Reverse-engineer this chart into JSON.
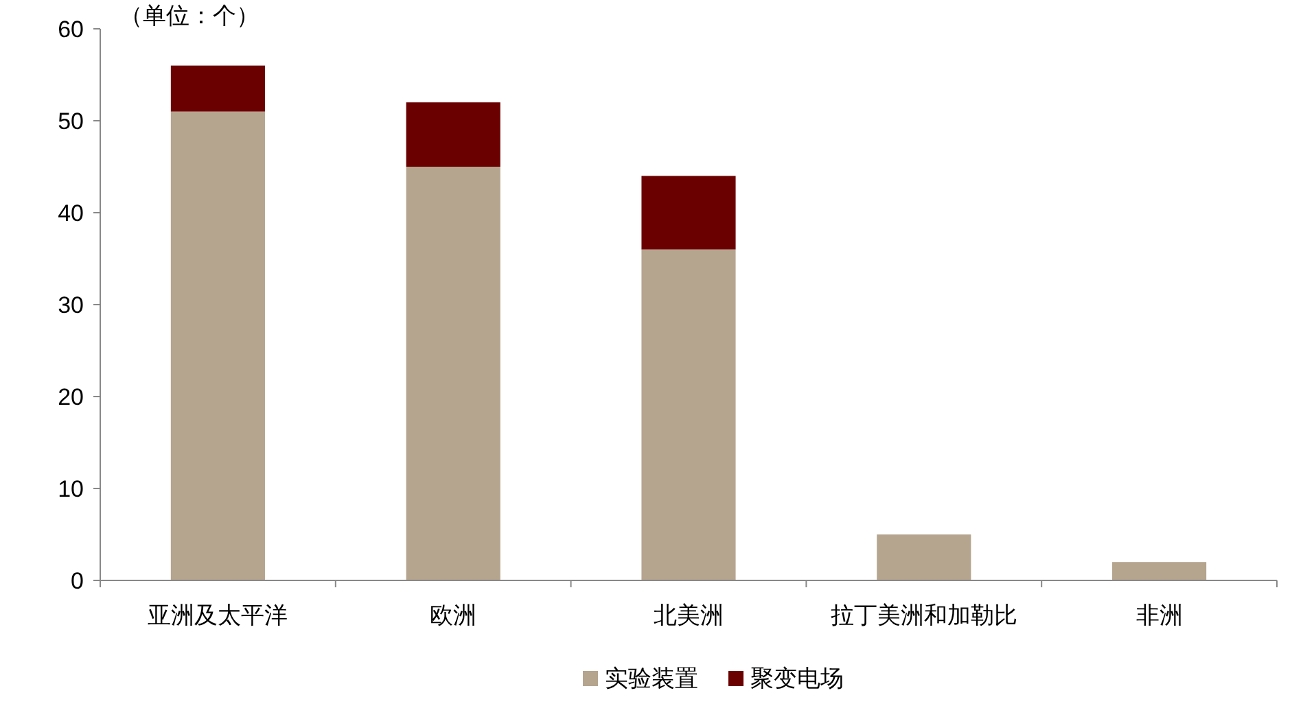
{
  "chart_data": {
    "type": "bar",
    "stacked": true,
    "annotations": [
      "（单位：个）"
    ],
    "categories": [
      "亚洲及太平洋",
      "欧洲",
      "北美洲",
      "拉丁美洲和加勒比",
      "非洲"
    ],
    "series": [
      {
        "name": "实验装置",
        "color": "#b5a48e",
        "values": [
          51,
          45,
          36,
          5,
          2
        ]
      },
      {
        "name": "聚变电场",
        "color": "#6b0000",
        "values": [
          5,
          7,
          8,
          null,
          null
        ]
      }
    ],
    "ylim": [
      0,
      60
    ],
    "yticks": [
      0,
      10,
      20,
      30,
      40,
      50,
      60
    ],
    "grid": false,
    "legend": "bottom"
  }
}
